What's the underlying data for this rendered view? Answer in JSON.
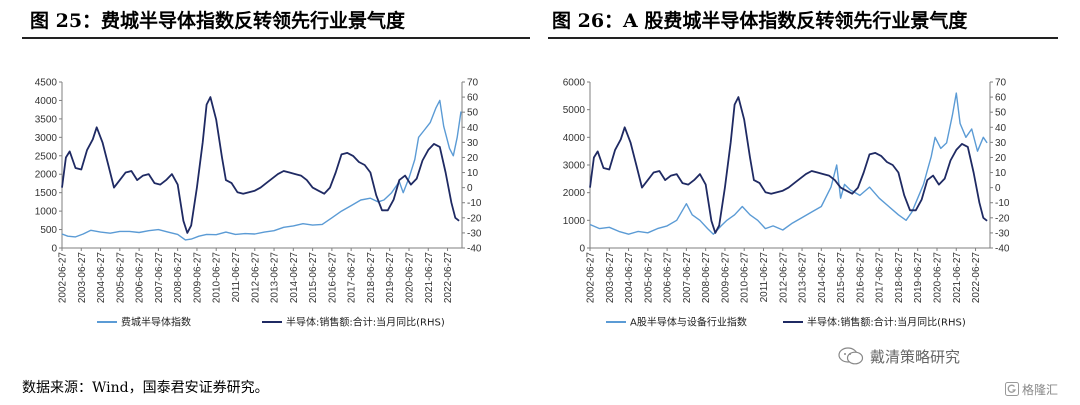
{
  "figures": [
    {
      "title": "图 25：费城半导体指数反转领先行业景气度"
    },
    {
      "title": "图 26：A 股费城半导体指数反转领先行业景气度"
    }
  ],
  "source_note": "数据来源：Wind，国泰君安证券研究。",
  "watermark": {
    "text": "戴清策略研究",
    "icon": "wechat-icon"
  },
  "corner_watermark": {
    "text": "格隆汇",
    "icon": "gelonghui-logo-icon"
  },
  "colors": {
    "light_series": "#5b9bd5",
    "dark_series": "#1f2a63",
    "axis": "#7f7f7f"
  },
  "chart_data": [
    {
      "type": "line",
      "title": "",
      "x_tick_labels": [
        "2002-06-27",
        "2003-06-27",
        "2004-06-27",
        "2005-06-27",
        "2006-06-27",
        "2007-06-27",
        "2008-06-27",
        "2009-06-27",
        "2010-06-27",
        "2011-06-27",
        "2012-06-27",
        "2013-06-27",
        "2014-06-27",
        "2015-06-27",
        "2016-06-27",
        "2017-06-27",
        "2018-06-27",
        "2019-06-27",
        "2020-06-27",
        "2021-06-27",
        "2022-06-27"
      ],
      "y_left": {
        "lim": [
          0,
          4500
        ],
        "ticks": [
          0,
          500,
          1000,
          1500,
          2000,
          2500,
          3000,
          3500,
          4000,
          4500
        ]
      },
      "y_right": {
        "lim": [
          -40,
          70
        ],
        "ticks": [
          -40,
          -30,
          -20,
          -10,
          0,
          10,
          20,
          30,
          40,
          50,
          60,
          70
        ]
      },
      "series": [
        {
          "name": "费城半导体指数",
          "axis": "left",
          "color": "#5b9bd5",
          "x": [
            2002.5,
            2002.8,
            2003.2,
            2003.6,
            2004.0,
            2004.5,
            2005.0,
            2005.5,
            2006.0,
            2006.5,
            2007.0,
            2007.5,
            2008.0,
            2008.5,
            2008.9,
            2009.2,
            2009.6,
            2010.0,
            2010.5,
            2011.0,
            2011.5,
            2012.0,
            2012.5,
            2013.0,
            2013.5,
            2014.0,
            2014.5,
            2015.0,
            2015.5,
            2016.0,
            2016.5,
            2017.0,
            2017.5,
            2018.0,
            2018.5,
            2018.9,
            2019.2,
            2019.6,
            2020.0,
            2020.2,
            2020.5,
            2020.8,
            2021.0,
            2021.3,
            2021.6,
            2021.9,
            2022.1,
            2022.3,
            2022.6,
            2022.8,
            2023.0,
            2023.2
          ],
          "y": [
            380,
            320,
            300,
            380,
            480,
            430,
            400,
            450,
            450,
            420,
            470,
            500,
            430,
            370,
            220,
            240,
            320,
            370,
            360,
            430,
            370,
            390,
            380,
            430,
            470,
            560,
            600,
            660,
            620,
            640,
            820,
            1000,
            1150,
            1300,
            1350,
            1250,
            1300,
            1500,
            1800,
            1500,
            1900,
            2400,
            3000,
            3200,
            3400,
            3800,
            4000,
            3300,
            2700,
            2500,
            3000,
            3700
          ]
        },
        {
          "name": "半导体:销售额:合计:当月同比(RHS)",
          "axis": "right",
          "color": "#1f2a63",
          "x": [
            2002.5,
            2002.7,
            2002.9,
            2003.2,
            2003.5,
            2003.8,
            2004.1,
            2004.3,
            2004.6,
            2004.9,
            2005.2,
            2005.5,
            2005.8,
            2006.1,
            2006.4,
            2006.7,
            2007.0,
            2007.3,
            2007.6,
            2007.9,
            2008.2,
            2008.5,
            2008.8,
            2009.0,
            2009.2,
            2009.5,
            2009.8,
            2010.0,
            2010.2,
            2010.5,
            2010.8,
            2011.0,
            2011.3,
            2011.6,
            2011.9,
            2012.2,
            2012.5,
            2012.8,
            2013.1,
            2013.4,
            2013.7,
            2014.0,
            2014.3,
            2014.6,
            2014.9,
            2015.2,
            2015.5,
            2015.8,
            2016.1,
            2016.4,
            2016.7,
            2017.0,
            2017.3,
            2017.6,
            2017.9,
            2018.2,
            2018.5,
            2018.8,
            2019.1,
            2019.4,
            2019.7,
            2020.0,
            2020.3,
            2020.6,
            2020.9,
            2021.2,
            2021.5,
            2021.8,
            2022.1,
            2022.4,
            2022.7,
            2022.9,
            2023.1
          ],
          "y": [
            0,
            20,
            24,
            13,
            12,
            25,
            32,
            40,
            30,
            15,
            0,
            5,
            10,
            11,
            5,
            8,
            9,
            3,
            2,
            5,
            9,
            2,
            -22,
            -30,
            -25,
            0,
            30,
            55,
            60,
            45,
            20,
            5,
            3,
            -3,
            -4,
            -3,
            -2,
            0,
            3,
            6,
            9,
            11,
            10,
            9,
            8,
            5,
            0,
            -2,
            -4,
            0,
            10,
            22,
            23,
            21,
            17,
            15,
            10,
            -5,
            -15,
            -15,
            -8,
            5,
            8,
            2,
            6,
            18,
            25,
            29,
            27,
            10,
            -10,
            -20,
            -22
          ]
        }
      ]
    },
    {
      "type": "line",
      "title": "",
      "x_tick_labels": [
        "2002-06-27",
        "2003-06-27",
        "2004-06-27",
        "2005-06-27",
        "2006-06-27",
        "2007-06-27",
        "2008-06-27",
        "2009-06-27",
        "2010-06-27",
        "2011-06-27",
        "2012-06-27",
        "2013-06-27",
        "2014-06-27",
        "2015-06-27",
        "2016-06-27",
        "2017-06-27",
        "2018-06-27",
        "2019-06-27",
        "2020-06-27",
        "2021-06-27",
        "2022-06-27"
      ],
      "y_left": {
        "lim": [
          0,
          6000
        ],
        "ticks": [
          0,
          1000,
          2000,
          3000,
          4000,
          5000,
          6000
        ]
      },
      "y_right": {
        "lim": [
          -40,
          70
        ],
        "ticks": [
          -40,
          -30,
          -20,
          -10,
          0,
          10,
          20,
          30,
          40,
          50,
          60,
          70
        ]
      },
      "series": [
        {
          "name": "A股半导体与设备行业指数",
          "axis": "left",
          "color": "#5b9bd5",
          "x": [
            2002.5,
            2003.0,
            2003.5,
            2004.0,
            2004.5,
            2005.0,
            2005.5,
            2006.0,
            2006.5,
            2007.0,
            2007.5,
            2007.8,
            2008.2,
            2008.6,
            2008.9,
            2009.3,
            2009.6,
            2010.0,
            2010.4,
            2010.8,
            2011.2,
            2011.6,
            2012.0,
            2012.5,
            2013.0,
            2013.5,
            2014.0,
            2014.5,
            2015.0,
            2015.3,
            2015.5,
            2015.7,
            2016.0,
            2016.5,
            2017.0,
            2017.5,
            2018.0,
            2018.5,
            2018.9,
            2019.2,
            2019.5,
            2019.8,
            2020.0,
            2020.2,
            2020.4,
            2020.7,
            2021.0,
            2021.3,
            2021.5,
            2021.7,
            2022.0,
            2022.3,
            2022.6,
            2022.9,
            2023.1
          ],
          "y": [
            850,
            700,
            750,
            600,
            500,
            600,
            550,
            700,
            800,
            1000,
            1600,
            1200,
            1000,
            700,
            500,
            800,
            1000,
            1200,
            1500,
            1200,
            1000,
            700,
            800,
            650,
            900,
            1100,
            1300,
            1500,
            2200,
            3000,
            1800,
            2300,
            2100,
            1900,
            2200,
            1800,
            1500,
            1200,
            1000,
            1300,
            1800,
            2300,
            2800,
            3300,
            4000,
            3600,
            3800,
            4800,
            5600,
            4500,
            4000,
            4300,
            3500,
            4000,
            3800
          ]
        },
        {
          "name": "半导体:销售额:合计:当月同比(RHS)",
          "axis": "right",
          "color": "#1f2a63",
          "x": [
            2002.5,
            2002.7,
            2002.9,
            2003.2,
            2003.5,
            2003.8,
            2004.1,
            2004.3,
            2004.6,
            2004.9,
            2005.2,
            2005.5,
            2005.8,
            2006.1,
            2006.4,
            2006.7,
            2007.0,
            2007.3,
            2007.6,
            2007.9,
            2008.2,
            2008.5,
            2008.8,
            2009.0,
            2009.2,
            2009.5,
            2009.8,
            2010.0,
            2010.2,
            2010.5,
            2010.8,
            2011.0,
            2011.3,
            2011.6,
            2011.9,
            2012.2,
            2012.5,
            2012.8,
            2013.1,
            2013.4,
            2013.7,
            2014.0,
            2014.3,
            2014.6,
            2014.9,
            2015.2,
            2015.5,
            2015.8,
            2016.1,
            2016.4,
            2016.7,
            2017.0,
            2017.3,
            2017.6,
            2017.9,
            2018.2,
            2018.5,
            2018.8,
            2019.1,
            2019.4,
            2019.7,
            2020.0,
            2020.3,
            2020.6,
            2020.9,
            2021.2,
            2021.5,
            2021.8,
            2022.1,
            2022.4,
            2022.7,
            2022.9,
            2023.1
          ],
          "y": [
            0,
            20,
            24,
            13,
            12,
            25,
            32,
            40,
            30,
            15,
            0,
            5,
            10,
            11,
            5,
            8,
            9,
            3,
            2,
            5,
            9,
            2,
            -22,
            -30,
            -25,
            0,
            30,
            55,
            60,
            45,
            20,
            5,
            3,
            -3,
            -4,
            -3,
            -2,
            0,
            3,
            6,
            9,
            11,
            10,
            9,
            8,
            5,
            0,
            -2,
            -4,
            0,
            10,
            22,
            23,
            21,
            17,
            15,
            10,
            -5,
            -15,
            -15,
            -8,
            5,
            8,
            2,
            6,
            18,
            25,
            29,
            27,
            10,
            -10,
            -20,
            -22
          ]
        }
      ]
    }
  ]
}
